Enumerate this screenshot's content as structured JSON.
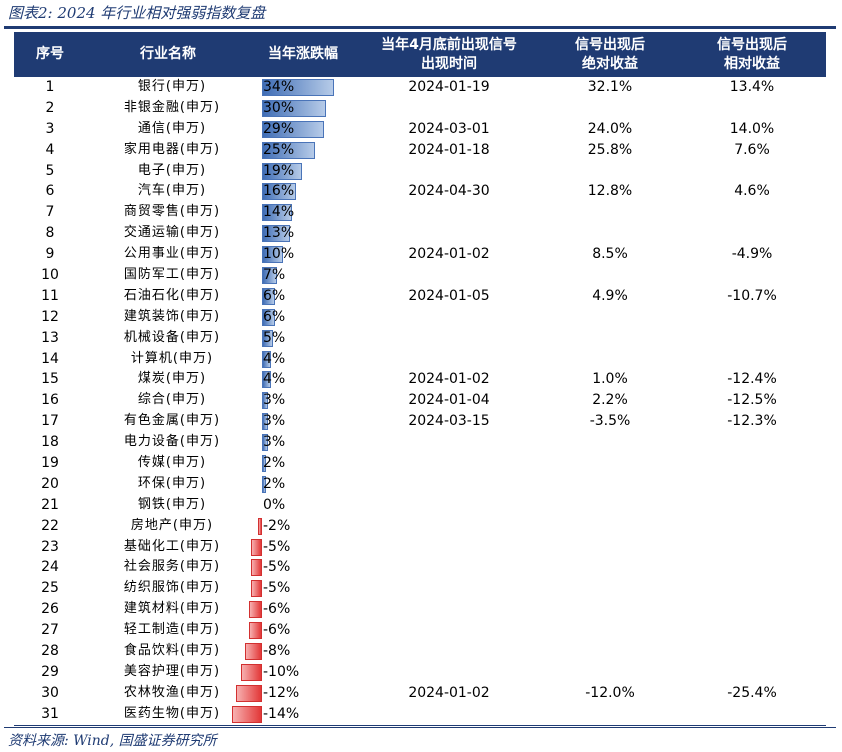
{
  "title": "图表2:  2024 年行业相对强弱指数复盘",
  "headers": {
    "idx": "序号",
    "name": "行业名称",
    "ret": "当年涨跌幅",
    "date_line1": "当年4月底前出现信号",
    "date_line2": "出现时间",
    "abs_line1": "信号出现后",
    "abs_line2": "绝对收益",
    "rel_line1": "信号出现后",
    "rel_line2": "相对收益"
  },
  "rows": [
    {
      "idx": "1",
      "name": "银行(申万)",
      "ret": 34,
      "ret_label": "34%",
      "date": "2024-01-19",
      "abs": "32.1%",
      "rel": "13.4%"
    },
    {
      "idx": "2",
      "name": "非银金融(申万)",
      "ret": 30,
      "ret_label": "30%",
      "date": "",
      "abs": "",
      "rel": ""
    },
    {
      "idx": "3",
      "name": "通信(申万)",
      "ret": 29,
      "ret_label": "29%",
      "date": "2024-03-01",
      "abs": "24.0%",
      "rel": "14.0%"
    },
    {
      "idx": "4",
      "name": "家用电器(申万)",
      "ret": 25,
      "ret_label": "25%",
      "date": "2024-01-18",
      "abs": "25.8%",
      "rel": "7.6%"
    },
    {
      "idx": "5",
      "name": "电子(申万)",
      "ret": 19,
      "ret_label": "19%",
      "date": "",
      "abs": "",
      "rel": ""
    },
    {
      "idx": "6",
      "name": "汽车(申万)",
      "ret": 16,
      "ret_label": "16%",
      "date": "2024-04-30",
      "abs": "12.8%",
      "rel": "4.6%"
    },
    {
      "idx": "7",
      "name": "商贸零售(申万)",
      "ret": 14,
      "ret_label": "14%",
      "date": "",
      "abs": "",
      "rel": ""
    },
    {
      "idx": "8",
      "name": "交通运输(申万)",
      "ret": 13,
      "ret_label": "13%",
      "date": "",
      "abs": "",
      "rel": ""
    },
    {
      "idx": "9",
      "name": "公用事业(申万)",
      "ret": 10,
      "ret_label": "10%",
      "date": "2024-01-02",
      "abs": "8.5%",
      "rel": "-4.9%"
    },
    {
      "idx": "10",
      "name": "国防军工(申万)",
      "ret": 7,
      "ret_label": "7%",
      "date": "",
      "abs": "",
      "rel": ""
    },
    {
      "idx": "11",
      "name": "石油石化(申万)",
      "ret": 6,
      "ret_label": "6%",
      "date": "2024-01-05",
      "abs": "4.9%",
      "rel": "-10.7%"
    },
    {
      "idx": "12",
      "name": "建筑装饰(申万)",
      "ret": 6,
      "ret_label": "6%",
      "date": "",
      "abs": "",
      "rel": ""
    },
    {
      "idx": "13",
      "name": "机械设备(申万)",
      "ret": 5,
      "ret_label": "5%",
      "date": "",
      "abs": "",
      "rel": ""
    },
    {
      "idx": "14",
      "name": "计算机(申万)",
      "ret": 4,
      "ret_label": "4%",
      "date": "",
      "abs": "",
      "rel": ""
    },
    {
      "idx": "15",
      "name": "煤炭(申万)",
      "ret": 4,
      "ret_label": "4%",
      "date": "2024-01-02",
      "abs": "1.0%",
      "rel": "-12.4%"
    },
    {
      "idx": "16",
      "name": "综合(申万)",
      "ret": 3,
      "ret_label": "3%",
      "date": "2024-01-04",
      "abs": "2.2%",
      "rel": "-12.5%"
    },
    {
      "idx": "17",
      "name": "有色金属(申万)",
      "ret": 3,
      "ret_label": "3%",
      "date": "2024-03-15",
      "abs": "-3.5%",
      "rel": "-12.3%"
    },
    {
      "idx": "18",
      "name": "电力设备(申万)",
      "ret": 3,
      "ret_label": "3%",
      "date": "",
      "abs": "",
      "rel": ""
    },
    {
      "idx": "19",
      "name": "传媒(申万)",
      "ret": 2,
      "ret_label": "2%",
      "date": "",
      "abs": "",
      "rel": ""
    },
    {
      "idx": "20",
      "name": "环保(申万)",
      "ret": 2,
      "ret_label": "2%",
      "date": "",
      "abs": "",
      "rel": ""
    },
    {
      "idx": "21",
      "name": "钢铁(申万)",
      "ret": 0,
      "ret_label": "0%",
      "date": "",
      "abs": "",
      "rel": ""
    },
    {
      "idx": "22",
      "name": "房地产(申万)",
      "ret": -2,
      "ret_label": "-2%",
      "date": "",
      "abs": "",
      "rel": ""
    },
    {
      "idx": "23",
      "name": "基础化工(申万)",
      "ret": -5,
      "ret_label": "-5%",
      "date": "",
      "abs": "",
      "rel": ""
    },
    {
      "idx": "24",
      "name": "社会服务(申万)",
      "ret": -5,
      "ret_label": "-5%",
      "date": "",
      "abs": "",
      "rel": ""
    },
    {
      "idx": "25",
      "name": "纺织服饰(申万)",
      "ret": -5,
      "ret_label": "-5%",
      "date": "",
      "abs": "",
      "rel": ""
    },
    {
      "idx": "26",
      "name": "建筑材料(申万)",
      "ret": -6,
      "ret_label": "-6%",
      "date": "",
      "abs": "",
      "rel": ""
    },
    {
      "idx": "27",
      "name": "轻工制造(申万)",
      "ret": -6,
      "ret_label": "-6%",
      "date": "",
      "abs": "",
      "rel": ""
    },
    {
      "idx": "28",
      "name": "食品饮料(申万)",
      "ret": -8,
      "ret_label": "-8%",
      "date": "",
      "abs": "",
      "rel": ""
    },
    {
      "idx": "29",
      "name": "美容护理(申万)",
      "ret": -10,
      "ret_label": "-10%",
      "date": "",
      "abs": "",
      "rel": ""
    },
    {
      "idx": "30",
      "name": "农林牧渔(申万)",
      "ret": -12,
      "ret_label": "-12%",
      "date": "2024-01-02",
      "abs": "-12.0%",
      "rel": "-25.4%"
    },
    {
      "idx": "31",
      "name": "医药生物(申万)",
      "ret": -14,
      "ret_label": "-14%",
      "date": "",
      "abs": "",
      "rel": ""
    }
  ],
  "colors": {
    "header_bg": "#1f3b73",
    "positive_bar": "#3f6db5",
    "negative_bar": "#e23838"
  },
  "source": "资料来源:  Wind,  国盛证券研究所"
}
